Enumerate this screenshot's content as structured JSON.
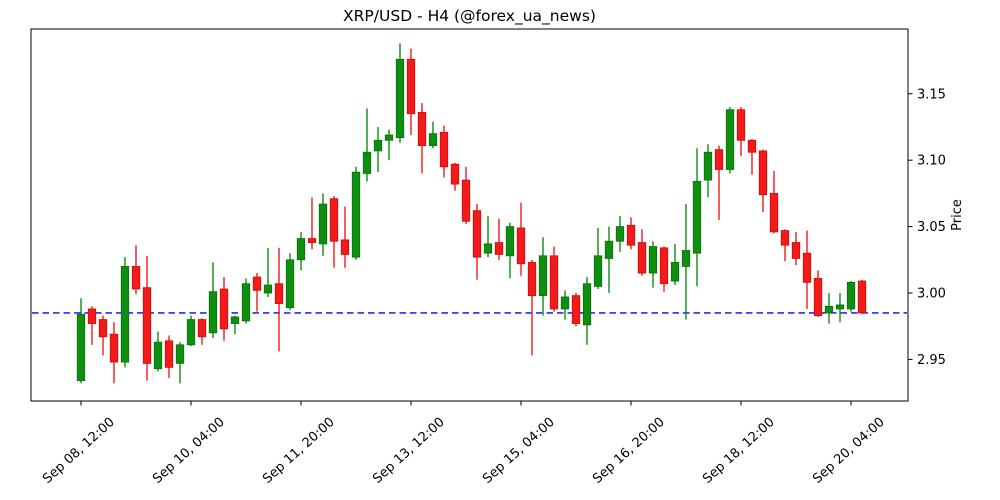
{
  "title": "XRP/USD - H4 (@forex_ua_news)",
  "chart_data": {
    "type": "candlestick",
    "title": "XRP/USD - H4 (@forex_ua_news)",
    "xlabel": "",
    "ylabel": "Price",
    "timeframe": "H4",
    "symbol": "XRP/USD",
    "ylim": [
      2.919,
      3.199
    ],
    "y_ticks": [
      2.95,
      3.0,
      3.05,
      3.1,
      3.15
    ],
    "y_tick_side": "right",
    "grid": false,
    "legend": null,
    "x_ticks": [
      {
        "index": 0,
        "label": "Sep 08, 12:00"
      },
      {
        "index": 10,
        "label": "Sep 10, 04:00"
      },
      {
        "index": 20,
        "label": "Sep 11, 20:00"
      },
      {
        "index": 30,
        "label": "Sep 13, 12:00"
      },
      {
        "index": 40,
        "label": "Sep 15, 04:00"
      },
      {
        "index": 50,
        "label": "Sep 16, 20:00"
      },
      {
        "index": 60,
        "label": "Sep 18, 12:00"
      },
      {
        "index": 70,
        "label": "Sep 20, 04:00"
      }
    ],
    "support_line": {
      "price": 2.985,
      "color": "#0000ff",
      "style": "dashed"
    },
    "colors": {
      "up": "#0f8f0f",
      "up_edge": "#0a6e0a",
      "down": "#f51a1a",
      "down_edge": "#c60d0d",
      "axis": "#000000"
    },
    "candles": [
      {
        "t": "Sep 08 12:00",
        "o": 2.934,
        "h": 2.996,
        "l": 2.932,
        "c": 2.984
      },
      {
        "t": "Sep 08 16:00",
        "o": 2.988,
        "h": 2.99,
        "l": 2.961,
        "c": 2.977
      },
      {
        "t": "Sep 08 20:00",
        "o": 2.98,
        "h": 2.983,
        "l": 2.953,
        "c": 2.967
      },
      {
        "t": "Sep 09 00:00",
        "o": 2.969,
        "h": 2.978,
        "l": 2.932,
        "c": 2.948
      },
      {
        "t": "Sep 09 04:00",
        "o": 2.948,
        "h": 3.027,
        "l": 2.944,
        "c": 3.02
      },
      {
        "t": "Sep 09 08:00",
        "o": 3.02,
        "h": 3.036,
        "l": 2.999,
        "c": 3.003
      },
      {
        "t": "Sep 09 12:00",
        "o": 3.004,
        "h": 3.028,
        "l": 2.934,
        "c": 2.947
      },
      {
        "t": "Sep 09 16:00",
        "o": 2.943,
        "h": 2.971,
        "l": 2.941,
        "c": 2.963
      },
      {
        "t": "Sep 09 20:00",
        "o": 2.964,
        "h": 2.968,
        "l": 2.936,
        "c": 2.944
      },
      {
        "t": "Sep 10 00:00",
        "o": 2.947,
        "h": 2.963,
        "l": 2.932,
        "c": 2.961
      },
      {
        "t": "Sep 10 04:00",
        "o": 2.961,
        "h": 2.983,
        "l": 2.96,
        "c": 2.98
      },
      {
        "t": "Sep 10 08:00",
        "o": 2.98,
        "h": 2.981,
        "l": 2.961,
        "c": 2.967
      },
      {
        "t": "Sep 10 12:00",
        "o": 2.97,
        "h": 3.023,
        "l": 2.966,
        "c": 3.001
      },
      {
        "t": "Sep 10 16:00",
        "o": 3.003,
        "h": 3.012,
        "l": 2.964,
        "c": 2.973
      },
      {
        "t": "Sep 10 20:00",
        "o": 2.977,
        "h": 2.983,
        "l": 2.969,
        "c": 2.982
      },
      {
        "t": "Sep 11 00:00",
        "o": 2.979,
        "h": 3.011,
        "l": 2.977,
        "c": 3.007
      },
      {
        "t": "Sep 11 04:00",
        "o": 3.012,
        "h": 3.015,
        "l": 2.986,
        "c": 3.002
      },
      {
        "t": "Sep 11 08:00",
        "o": 3.0,
        "h": 3.034,
        "l": 2.997,
        "c": 3.006
      },
      {
        "t": "Sep 11 12:00",
        "o": 3.007,
        "h": 3.034,
        "l": 2.956,
        "c": 2.992
      },
      {
        "t": "Sep 11 16:00",
        "o": 2.989,
        "h": 3.03,
        "l": 2.987,
        "c": 3.025
      },
      {
        "t": "Sep 11 20:00",
        "o": 3.025,
        "h": 3.046,
        "l": 3.017,
        "c": 3.041
      },
      {
        "t": "Sep 12 00:00",
        "o": 3.041,
        "h": 3.072,
        "l": 3.033,
        "c": 3.038
      },
      {
        "t": "Sep 12 04:00",
        "o": 3.037,
        "h": 3.075,
        "l": 3.028,
        "c": 3.067
      },
      {
        "t": "Sep 12 08:00",
        "o": 3.071,
        "h": 3.073,
        "l": 3.019,
        "c": 3.039
      },
      {
        "t": "Sep 12 12:00",
        "o": 3.04,
        "h": 3.065,
        "l": 3.019,
        "c": 3.029
      },
      {
        "t": "Sep 12 16:00",
        "o": 3.027,
        "h": 3.095,
        "l": 3.025,
        "c": 3.091
      },
      {
        "t": "Sep 12 20:00",
        "o": 3.09,
        "h": 3.139,
        "l": 3.084,
        "c": 3.106
      },
      {
        "t": "Sep 13 00:00",
        "o": 3.107,
        "h": 3.125,
        "l": 3.091,
        "c": 3.115
      },
      {
        "t": "Sep 13 04:00",
        "o": 3.115,
        "h": 3.123,
        "l": 3.1,
        "c": 3.119
      },
      {
        "t": "Sep 13 08:00",
        "o": 3.117,
        "h": 3.188,
        "l": 3.113,
        "c": 3.176
      },
      {
        "t": "Sep 13 12:00",
        "o": 3.176,
        "h": 3.184,
        "l": 3.119,
        "c": 3.135
      },
      {
        "t": "Sep 13 16:00",
        "o": 3.136,
        "h": 3.143,
        "l": 3.09,
        "c": 3.111
      },
      {
        "t": "Sep 13 20:00",
        "o": 3.111,
        "h": 3.129,
        "l": 3.109,
        "c": 3.12
      },
      {
        "t": "Sep 14 00:00",
        "o": 3.121,
        "h": 3.126,
        "l": 3.087,
        "c": 3.095
      },
      {
        "t": "Sep 14 04:00",
        "o": 3.097,
        "h": 3.098,
        "l": 3.077,
        "c": 3.082
      },
      {
        "t": "Sep 14 08:00",
        "o": 3.085,
        "h": 3.095,
        "l": 3.052,
        "c": 3.054
      },
      {
        "t": "Sep 14 12:00",
        "o": 3.062,
        "h": 3.067,
        "l": 3.01,
        "c": 3.027
      },
      {
        "t": "Sep 14 16:00",
        "o": 3.03,
        "h": 3.058,
        "l": 3.027,
        "c": 3.037
      },
      {
        "t": "Sep 14 20:00",
        "o": 3.038,
        "h": 3.056,
        "l": 3.025,
        "c": 3.029
      },
      {
        "t": "Sep 15 00:00",
        "o": 3.028,
        "h": 3.053,
        "l": 3.011,
        "c": 3.05
      },
      {
        "t": "Sep 15 04:00",
        "o": 3.049,
        "h": 3.068,
        "l": 3.013,
        "c": 3.022
      },
      {
        "t": "Sep 15 08:00",
        "o": 3.023,
        "h": 3.025,
        "l": 2.953,
        "c": 2.998
      },
      {
        "t": "Sep 15 12:00",
        "o": 2.998,
        "h": 3.042,
        "l": 2.983,
        "c": 3.028
      },
      {
        "t": "Sep 15 16:00",
        "o": 3.028,
        "h": 3.035,
        "l": 2.986,
        "c": 2.988
      },
      {
        "t": "Sep 15 20:00",
        "o": 2.988,
        "h": 3.002,
        "l": 2.98,
        "c": 2.997
      },
      {
        "t": "Sep 16 00:00",
        "o": 2.998,
        "h": 3.0,
        "l": 2.975,
        "c": 2.977
      },
      {
        "t": "Sep 16 04:00",
        "o": 2.976,
        "h": 3.012,
        "l": 2.961,
        "c": 3.007
      },
      {
        "t": "Sep 16 08:00",
        "o": 3.005,
        "h": 3.049,
        "l": 3.003,
        "c": 3.028
      },
      {
        "t": "Sep 16 12:00",
        "o": 3.026,
        "h": 3.05,
        "l": 3.0,
        "c": 3.039
      },
      {
        "t": "Sep 16 16:00",
        "o": 3.039,
        "h": 3.058,
        "l": 3.031,
        "c": 3.05
      },
      {
        "t": "Sep 16 20:00",
        "o": 3.051,
        "h": 3.057,
        "l": 3.033,
        "c": 3.036
      },
      {
        "t": "Sep 17 00:00",
        "o": 3.038,
        "h": 3.048,
        "l": 3.013,
        "c": 3.015
      },
      {
        "t": "Sep 17 04:00",
        "o": 3.015,
        "h": 3.039,
        "l": 3.004,
        "c": 3.035
      },
      {
        "t": "Sep 17 08:00",
        "o": 3.034,
        "h": 3.035,
        "l": 3.001,
        "c": 3.007
      },
      {
        "t": "Sep 17 12:00",
        "o": 3.009,
        "h": 3.037,
        "l": 3.006,
        "c": 3.023
      },
      {
        "t": "Sep 17 16:00",
        "o": 3.02,
        "h": 3.067,
        "l": 2.98,
        "c": 3.032
      },
      {
        "t": "Sep 17 20:00",
        "o": 3.03,
        "h": 3.109,
        "l": 3.005,
        "c": 3.084
      },
      {
        "t": "Sep 18 00:00",
        "o": 3.085,
        "h": 3.112,
        "l": 3.072,
        "c": 3.106
      },
      {
        "t": "Sep 18 04:00",
        "o": 3.108,
        "h": 3.111,
        "l": 3.055,
        "c": 3.093
      },
      {
        "t": "Sep 18 08:00",
        "o": 3.093,
        "h": 3.14,
        "l": 3.09,
        "c": 3.138
      },
      {
        "t": "Sep 18 12:00",
        "o": 3.138,
        "h": 3.14,
        "l": 3.103,
        "c": 3.115
      },
      {
        "t": "Sep 18 16:00",
        "o": 3.115,
        "h": 3.116,
        "l": 3.089,
        "c": 3.106
      },
      {
        "t": "Sep 18 20:00",
        "o": 3.107,
        "h": 3.108,
        "l": 3.061,
        "c": 3.074
      },
      {
        "t": "Sep 19 00:00",
        "o": 3.075,
        "h": 3.092,
        "l": 3.045,
        "c": 3.046
      },
      {
        "t": "Sep 19 04:00",
        "o": 3.047,
        "h": 3.048,
        "l": 3.024,
        "c": 3.036
      },
      {
        "t": "Sep 19 08:00",
        "o": 3.038,
        "h": 3.046,
        "l": 3.021,
        "c": 3.026
      },
      {
        "t": "Sep 19 12:00",
        "o": 3.03,
        "h": 3.047,
        "l": 2.988,
        "c": 3.008
      },
      {
        "t": "Sep 19 16:00",
        "o": 3.011,
        "h": 3.017,
        "l": 2.982,
        "c": 2.983
      },
      {
        "t": "Sep 19 20:00",
        "o": 2.985,
        "h": 3.0,
        "l": 2.977,
        "c": 2.99
      },
      {
        "t": "Sep 20 00:00",
        "o": 2.988,
        "h": 3.0,
        "l": 2.978,
        "c": 2.991
      },
      {
        "t": "Sep 20 04:00",
        "o": 2.988,
        "h": 3.009,
        "l": 2.986,
        "c": 3.008
      },
      {
        "t": "Sep 20 08:00",
        "o": 3.009,
        "h": 3.01,
        "l": 2.984,
        "c": 2.985
      }
    ]
  }
}
